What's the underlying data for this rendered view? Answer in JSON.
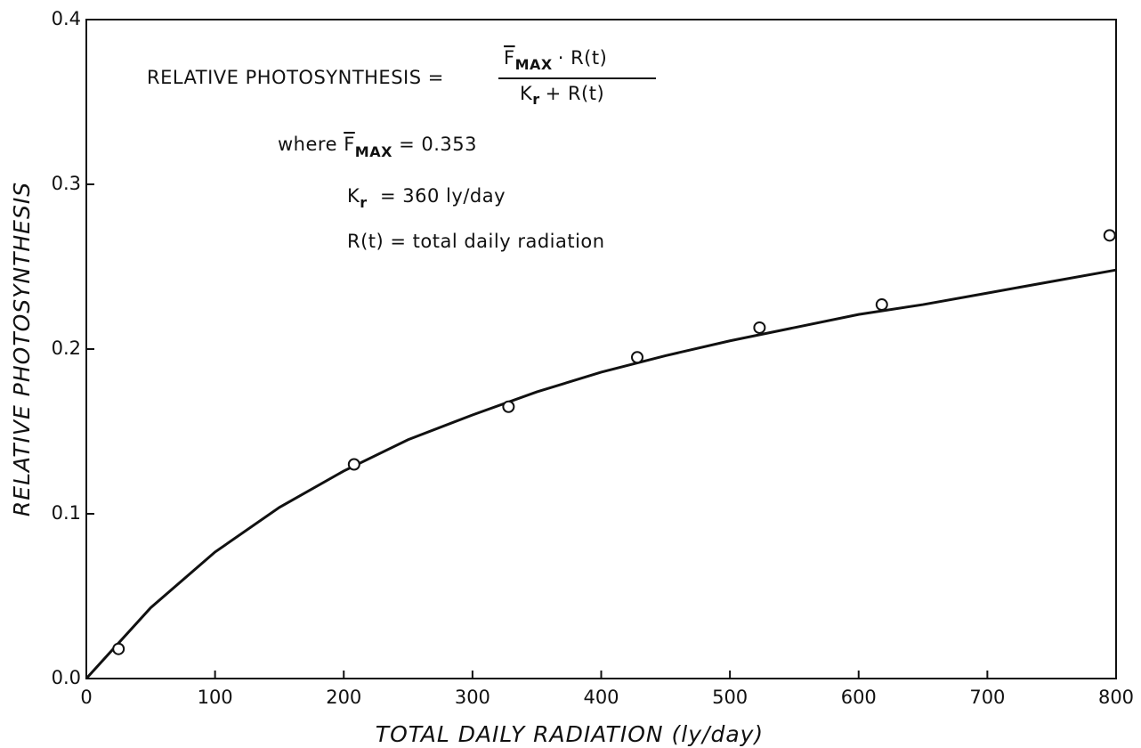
{
  "chart_data": {
    "type": "scatter",
    "xlabel": "TOTAL DAILY RADIATION (ly/day)",
    "ylabel": "RELATIVE PHOTOSYNTHESIS",
    "xlim": [
      0,
      800
    ],
    "ylim": [
      0,
      0.4
    ],
    "xticks": [
      0,
      100,
      200,
      300,
      400,
      500,
      600,
      700,
      800
    ],
    "yticks": [
      {
        "value": 0,
        "label": "0.0"
      },
      0.1,
      0.2,
      0.3,
      0.4
    ],
    "color": "#111111",
    "series": [
      {
        "type": "scatter",
        "x": [
          25,
          208,
          328,
          428,
          523,
          618,
          795
        ],
        "values": [
          0.018,
          0.13,
          0.165,
          0.195,
          0.213,
          0.227,
          0.269
        ]
      },
      {
        "type": "line",
        "x": [
          0,
          50,
          100,
          150,
          200,
          250,
          300,
          350,
          400,
          450,
          500,
          550,
          600,
          650,
          700,
          750,
          800
        ],
        "values": [
          0,
          0.043,
          0.0768,
          0.1039,
          0.126,
          0.145,
          0.16,
          0.174,
          0.186,
          0.196,
          0.205,
          0.213,
          0.221,
          0.227,
          0.234,
          0.241,
          0.248
        ]
      }
    ],
    "annotations": {
      "lhs": "RELATIVE PHOTOSYNTHESIS =",
      "numerator": [
        "F",
        "MAX",
        "· R(t)"
      ],
      "denominator": [
        "K",
        "r",
        "+ R(t)"
      ],
      "where": [
        "where ",
        "F",
        "MAX",
        " = 0.353"
      ],
      "kr": [
        "K",
        "r",
        "  = 360 ly/day"
      ],
      "rt": "R(t) = total daily radiation"
    }
  }
}
